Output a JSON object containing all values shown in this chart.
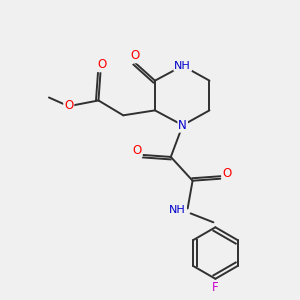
{
  "bg_color": "#f0f0f0",
  "atom_colors": {
    "C": "#000000",
    "N": "#0000cc",
    "O": "#ff0000",
    "F": "#cc00cc",
    "H": "#4a8a8a"
  },
  "bond_color": "#303030",
  "bond_width": 1.4,
  "figsize": [
    3.0,
    3.0
  ],
  "dpi": 100
}
